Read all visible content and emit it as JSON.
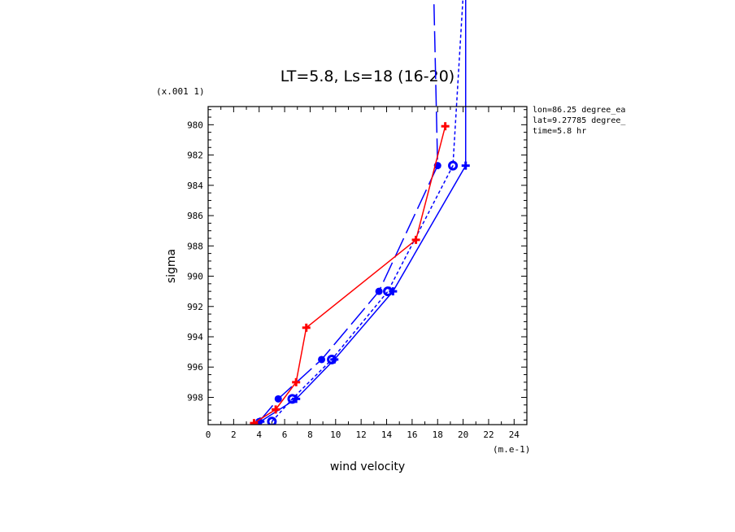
{
  "chart_data": {
    "type": "line",
    "title": "LT=5.8, Ls=18 (16-20)",
    "xlabel": "wind velocity",
    "ylabel": "sigma",
    "x_unit": "(m.e-1)",
    "y_unit": "(x.001 1)",
    "xlim": [
      0,
      25
    ],
    "ylim": [
      999.8,
      978.8
    ],
    "x_ticks": [
      "0",
      "2",
      "4",
      "6",
      "8",
      "10",
      "12",
      "14",
      "16",
      "18",
      "20",
      "22",
      "24"
    ],
    "y_ticks": [
      "980",
      "982",
      "984",
      "986",
      "988",
      "990",
      "992",
      "994",
      "996",
      "998"
    ],
    "info": [
      "lon=86.25 degree_ea",
      "lat=9.27785 degree_",
      "time=5.8 hr"
    ],
    "colors": {
      "blue": "#0000ff",
      "red": "#ff0000"
    },
    "series": [
      {
        "style": "solid-blue",
        "marker": "plus",
        "x": [
          4.1,
          6.9,
          9.9,
          14.5,
          20.2,
          20.2
        ],
        "y": [
          999.6,
          998.1,
          995.5,
          991.0,
          982.7,
          971.5
        ]
      },
      {
        "style": "short-dash-blue",
        "marker": "circle",
        "x": [
          5.0,
          6.6,
          9.7,
          14.1,
          19.2,
          20.0
        ],
        "y": [
          999.6,
          998.1,
          995.5,
          991.0,
          982.7,
          971.5
        ]
      },
      {
        "style": "long-dash-blue",
        "marker": "dot",
        "x": [
          4.0,
          5.5,
          8.9,
          13.4,
          18.0,
          17.7
        ],
        "y": [
          999.6,
          998.1,
          995.5,
          991.0,
          982.7,
          971.5
        ]
      },
      {
        "style": "solid-red",
        "marker": "plus",
        "x": [
          3.6,
          5.3,
          6.9,
          7.7,
          16.3,
          18.6
        ],
        "y": [
          999.7,
          998.8,
          997.0,
          993.4,
          987.6,
          980.1
        ]
      }
    ]
  }
}
